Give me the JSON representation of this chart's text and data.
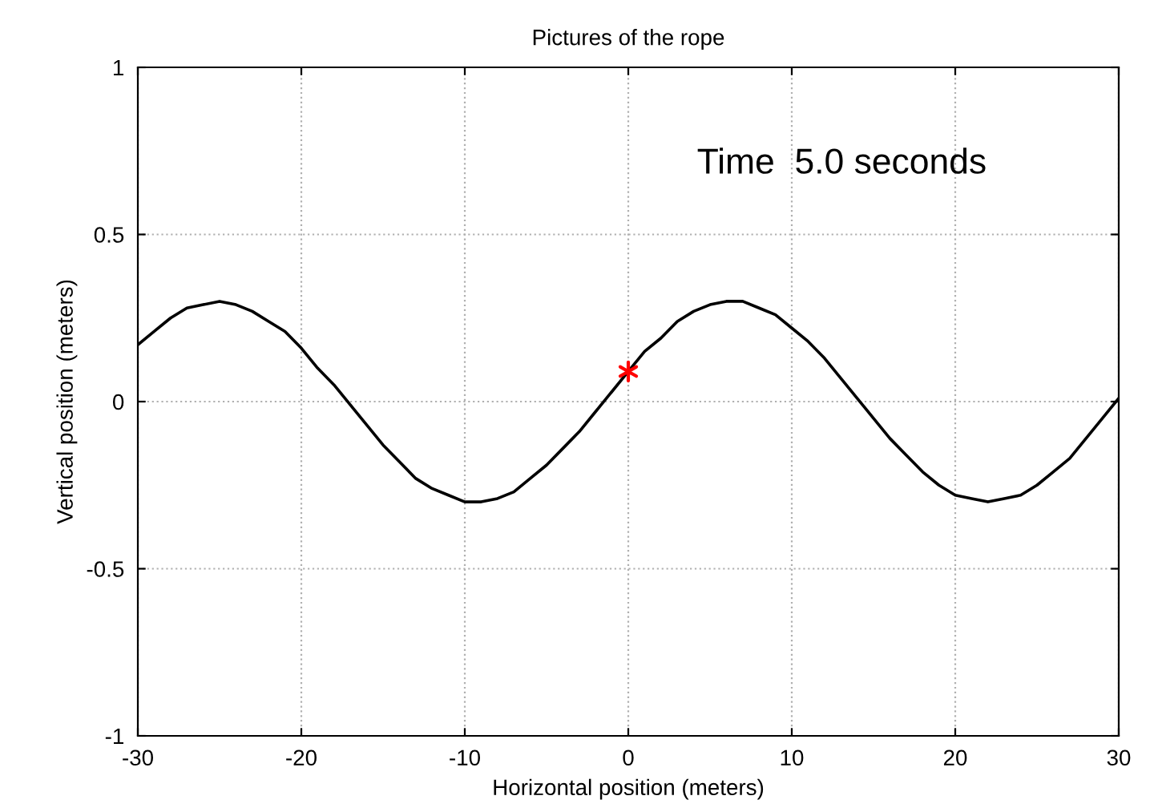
{
  "chart_data": {
    "type": "line",
    "title": "Pictures of the rope",
    "xlabel": "Horizontal position (meters)",
    "ylabel": "Vertical position (meters)",
    "annotations": [
      "Time  5.0 seconds"
    ],
    "xlim": [
      -30,
      30
    ],
    "xticks": [
      -30,
      -20,
      -10,
      0,
      10,
      20,
      30
    ],
    "ylim": [
      -1,
      1
    ],
    "yticks": [
      -1,
      -0.5,
      0,
      0.5,
      1
    ],
    "grid": true,
    "legend": false,
    "series": [
      {
        "color": "#000000",
        "marker": "none",
        "line_style": "solid",
        "x": [
          -30,
          -29,
          -28,
          -27,
          -26,
          -25,
          -24,
          -23,
          -22,
          -21,
          -20,
          -19,
          -18,
          -17,
          -16,
          -15,
          -14,
          -13,
          -12,
          -11,
          -10,
          -9,
          -8,
          -7,
          -6,
          -5,
          -4,
          -3,
          -2,
          -1,
          0,
          1,
          2,
          3,
          4,
          5,
          6,
          7,
          8,
          9,
          10,
          11,
          12,
          13,
          14,
          15,
          16,
          17,
          18,
          19,
          20,
          21,
          22,
          23,
          24,
          25,
          26,
          27,
          28,
          29,
          30
        ],
        "values": [
          0.17,
          0.21,
          0.25,
          0.28,
          0.29,
          0.3,
          0.29,
          0.27,
          0.24,
          0.21,
          0.16,
          0.1,
          0.05,
          -0.01,
          -0.07,
          -0.13,
          -0.18,
          -0.23,
          -0.26,
          -0.28,
          -0.3,
          -0.3,
          -0.29,
          -0.27,
          -0.23,
          -0.19,
          -0.14,
          -0.09,
          -0.03,
          0.03,
          0.09,
          0.15,
          0.19,
          0.24,
          0.27,
          0.29,
          0.3,
          0.3,
          0.28,
          0.26,
          0.22,
          0.18,
          0.13,
          0.07,
          0.01,
          -0.05,
          -0.11,
          -0.16,
          -0.21,
          -0.25,
          -0.28,
          -0.29,
          -0.3,
          -0.29,
          -0.28,
          -0.25,
          -0.21,
          -0.17,
          -0.11,
          -0.05,
          0.01
        ]
      },
      {
        "type": "scatter",
        "color": "#ff0000",
        "marker": "cross",
        "x": [
          0
        ],
        "values": [
          0.09
        ]
      }
    ]
  }
}
